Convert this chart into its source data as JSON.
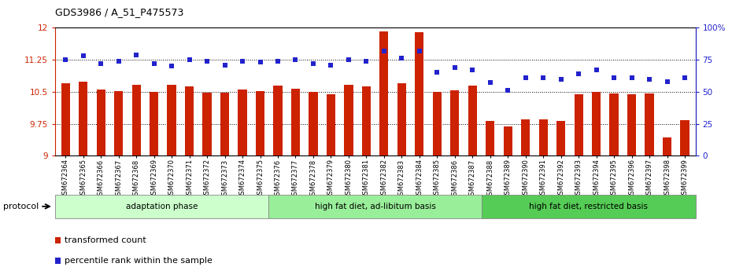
{
  "title": "GDS3986 / A_51_P475573",
  "samples": [
    "GSM672364",
    "GSM672365",
    "GSM672366",
    "GSM672367",
    "GSM672368",
    "GSM672369",
    "GSM672370",
    "GSM672371",
    "GSM672372",
    "GSM672373",
    "GSM672374",
    "GSM672375",
    "GSM672376",
    "GSM672377",
    "GSM672378",
    "GSM672379",
    "GSM672380",
    "GSM672381",
    "GSM672382",
    "GSM672383",
    "GSM672384",
    "GSM672385",
    "GSM672386",
    "GSM672387",
    "GSM672388",
    "GSM672389",
    "GSM672390",
    "GSM672391",
    "GSM672392",
    "GSM672393",
    "GSM672394",
    "GSM672395",
    "GSM672396",
    "GSM672397",
    "GSM672398",
    "GSM672399"
  ],
  "bar_values": [
    10.7,
    10.73,
    10.55,
    10.52,
    10.67,
    10.49,
    10.67,
    10.62,
    10.47,
    10.47,
    10.55,
    10.52,
    10.65,
    10.57,
    10.49,
    10.45,
    10.67,
    10.62,
    11.92,
    10.7,
    11.9,
    10.49,
    10.53,
    10.65,
    9.82,
    9.68,
    9.85,
    9.85,
    9.81,
    10.44,
    10.49,
    10.46,
    10.44,
    10.46,
    9.43,
    9.84
  ],
  "percentile_values": [
    75,
    78,
    72,
    74,
    79,
    72,
    70,
    75,
    74,
    71,
    74,
    73,
    74,
    75,
    72,
    71,
    75,
    74,
    82,
    76,
    82,
    65,
    69,
    67,
    57,
    51,
    61,
    61,
    60,
    64,
    67,
    61,
    61,
    60,
    58,
    61
  ],
  "groups": [
    {
      "label": "adaptation phase",
      "start": 0,
      "end": 12,
      "color": "#ccffcc"
    },
    {
      "label": "high fat diet, ad-libitum basis",
      "start": 12,
      "end": 24,
      "color": "#99ee99"
    },
    {
      "label": "high fat diet, restricted basis",
      "start": 24,
      "end": 36,
      "color": "#55cc55"
    }
  ],
  "ylim_left": [
    9.0,
    12.0
  ],
  "ylim_right": [
    0,
    100
  ],
  "yticks_left": [
    9.0,
    9.75,
    10.5,
    11.25,
    12.0
  ],
  "yticks_right": [
    0,
    25,
    50,
    75,
    100
  ],
  "ytick_labels_left": [
    "9",
    "9.75",
    "10.5",
    "11.25",
    "12"
  ],
  "ytick_labels_right": [
    "0",
    "25",
    "50",
    "75",
    "100%"
  ],
  "bar_color": "#cc2200",
  "dot_color": "#2222cc",
  "bg_color": "#ffffff",
  "bar_width": 0.5
}
